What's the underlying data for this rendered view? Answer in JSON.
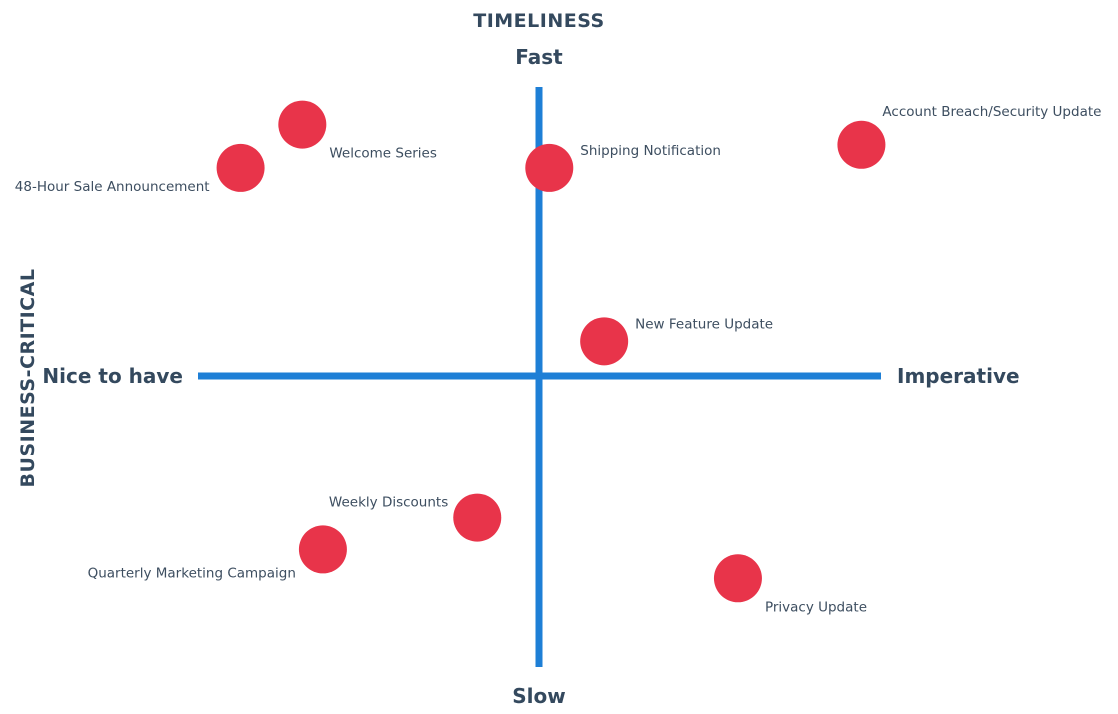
{
  "chart_data": {
    "type": "scatter",
    "title": "TIMELINESS",
    "ylabel_side": "BUSINESS-CRITICAL",
    "x_axis": {
      "low_label": "Nice to have",
      "high_label": "Imperative",
      "range": [
        -1,
        1
      ]
    },
    "y_axis": {
      "low_label": "Slow",
      "high_label": "Fast",
      "range": [
        -1,
        1
      ]
    },
    "grid": false,
    "legend": "none",
    "colors": {
      "axis": "#1e7fd6",
      "point": "#e8344a",
      "text": "#34495e"
    },
    "points": [
      {
        "label": "Welcome Series",
        "x": -0.69,
        "y": 0.87,
        "label_side": "below-right"
      },
      {
        "label": "48-Hour Sale Announcement",
        "x": -0.87,
        "y": 0.72,
        "label_side": "left"
      },
      {
        "label": "Shipping Notification",
        "x": 0.03,
        "y": 0.72,
        "label_side": "right"
      },
      {
        "label": "Account Breach/Security Update",
        "x": 0.94,
        "y": 0.8,
        "label_side": "above-right"
      },
      {
        "label": "New Feature Update",
        "x": 0.19,
        "y": 0.12,
        "label_side": "right"
      },
      {
        "label": "Weekly Discounts",
        "x": -0.18,
        "y": -0.49,
        "label_side": "above-left"
      },
      {
        "label": "Quarterly Marketing Campaign",
        "x": -0.63,
        "y": -0.6,
        "label_side": "below-left"
      },
      {
        "label": "Privacy Update",
        "x": 0.58,
        "y": -0.7,
        "label_side": "below-right"
      }
    ]
  }
}
